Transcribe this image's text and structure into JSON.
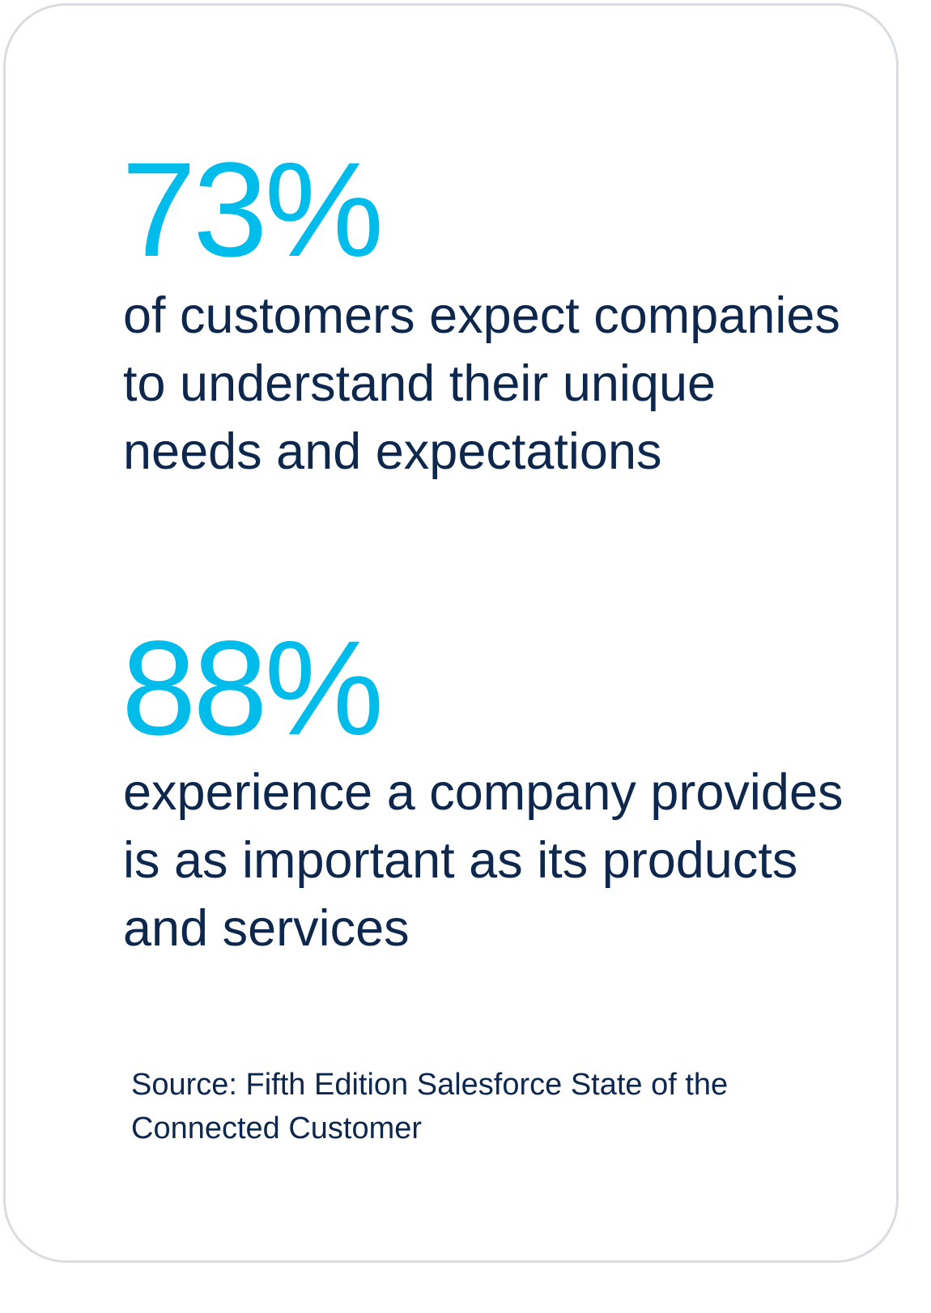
{
  "stats": [
    {
      "value": "73%",
      "description": "of customers expect companies to understand their unique needs and expectations"
    },
    {
      "value": "88%",
      "description": "experience a company provides is as important as its products and services"
    }
  ],
  "source": "Source: Fifth Edition Salesforce State of the Connected Customer",
  "colors": {
    "accent": "#00bceb",
    "text": "#0d274d",
    "border": "#d9dde2"
  }
}
